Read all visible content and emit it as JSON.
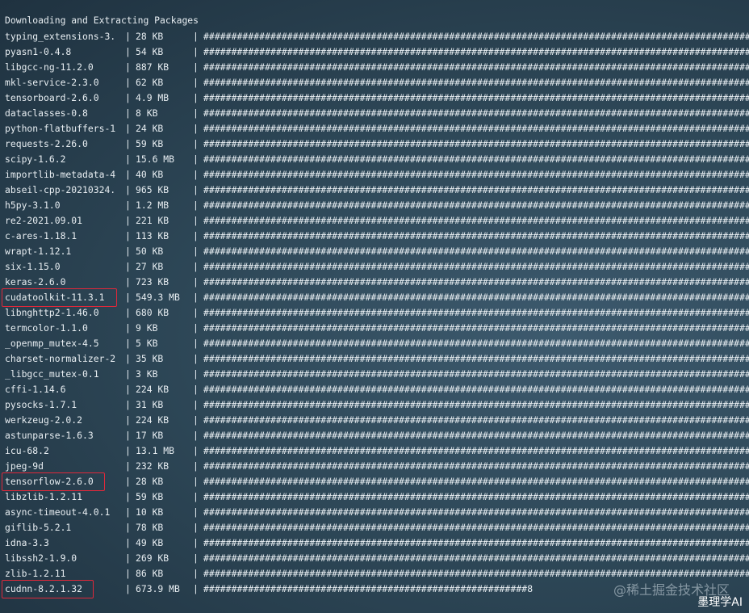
{
  "header": "Downloading and Extracting Packages",
  "separator": "|",
  "bar_full": "################################################################################################################################################################################",
  "packages": [
    {
      "name": "typing_extensions-3.",
      "size": "28 KB"
    },
    {
      "name": "pyasn1-0.4.8",
      "size": "54 KB"
    },
    {
      "name": "libgcc-ng-11.2.0",
      "size": "887 KB"
    },
    {
      "name": "mkl-service-2.3.0",
      "size": "62 KB"
    },
    {
      "name": "tensorboard-2.6.0",
      "size": "4.9 MB"
    },
    {
      "name": "dataclasses-0.8",
      "size": "8 KB"
    },
    {
      "name": "python-flatbuffers-1",
      "size": "24 KB"
    },
    {
      "name": "requests-2.26.0",
      "size": "59 KB"
    },
    {
      "name": "scipy-1.6.2",
      "size": "15.6 MB"
    },
    {
      "name": "importlib-metadata-4",
      "size": "40 KB"
    },
    {
      "name": "abseil-cpp-20210324.",
      "size": "965 KB"
    },
    {
      "name": "h5py-3.1.0",
      "size": "1.2 MB"
    },
    {
      "name": "re2-2021.09.01",
      "size": "221 KB"
    },
    {
      "name": "c-ares-1.18.1",
      "size": "113 KB"
    },
    {
      "name": "wrapt-1.12.1",
      "size": "50 KB"
    },
    {
      "name": "six-1.15.0",
      "size": "27 KB"
    },
    {
      "name": "keras-2.6.0",
      "size": "723 KB"
    },
    {
      "name": "cudatoolkit-11.3.1",
      "size": "549.3 MB",
      "highlighted": true
    },
    {
      "name": "libnghttp2-1.46.0",
      "size": "680 KB"
    },
    {
      "name": "termcolor-1.1.0",
      "size": "9 KB"
    },
    {
      "name": "_openmp_mutex-4.5",
      "size": "5 KB"
    },
    {
      "name": "charset-normalizer-2",
      "size": "35 KB"
    },
    {
      "name": "_libgcc_mutex-0.1",
      "size": "3 KB"
    },
    {
      "name": "cffi-1.14.6",
      "size": "224 KB"
    },
    {
      "name": "pysocks-1.7.1",
      "size": "31 KB"
    },
    {
      "name": "werkzeug-2.0.2",
      "size": "224 KB"
    },
    {
      "name": "astunparse-1.6.3",
      "size": "17 KB"
    },
    {
      "name": "icu-68.2",
      "size": "13.1 MB"
    },
    {
      "name": "jpeg-9d",
      "size": "232 KB"
    },
    {
      "name": "tensorflow-2.6.0",
      "size": "28 KB",
      "highlighted": true
    },
    {
      "name": "libzlib-1.2.11",
      "size": "59 KB"
    },
    {
      "name": "async-timeout-4.0.1",
      "size": "10 KB"
    },
    {
      "name": "giflib-5.2.1",
      "size": "78 KB"
    },
    {
      "name": "idna-3.3",
      "size": "49 KB"
    },
    {
      "name": "libssh2-1.9.0",
      "size": "269 KB"
    },
    {
      "name": "zlib-1.2.11",
      "size": "86 KB"
    },
    {
      "name": "cudnn-8.2.1.32",
      "size": "673.9 MB",
      "highlighted": true,
      "bar": "##########################################################8"
    }
  ],
  "highlight_color": "#e0283a",
  "watermark": {
    "site": "@稀土掘金技术社区",
    "author": "墨理学AI"
  }
}
